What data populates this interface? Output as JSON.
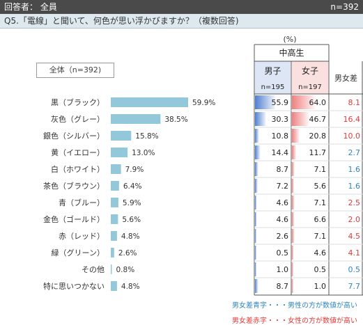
{
  "header": {
    "respondent": "回答者： 全員",
    "n": "n=392"
  },
  "question": "Q5.「電線」と聞いて、何色が思い浮かびますか？（複数回答)",
  "overall_label": "全体（n=392)",
  "table": {
    "unit": "(%)",
    "group": "中高生",
    "male_label": "男子",
    "male_n": "n=195",
    "female_label": "女子",
    "female_n": "n=197",
    "diff_label": "男女差"
  },
  "notes": {
    "blue": "男女差青字・・・男性の方が数値が高い",
    "red": "男女差赤字・・・女性の方が数値が高い"
  },
  "colors": {
    "bar": "#92c8d9",
    "male": "#4f7fd0",
    "female": "#f08080",
    "diff_pos": "#e53935",
    "diff_neg": "#2e86c1"
  },
  "chart_data": {
    "type": "bar",
    "orientation": "horizontal",
    "categories": [
      "黒（ブラック）",
      "灰色（グレー）",
      "銀色（シルバー）",
      "黄（イエロー）",
      "白（ホワイト）",
      "茶色（ブラウン）",
      "青（ブルー）",
      "金色（ゴールド）",
      "赤（レッド）",
      "緑（グリーン）",
      "その他",
      "特に思いつかない"
    ],
    "overall": [
      59.9,
      38.5,
      15.8,
      13.0,
      7.9,
      6.4,
      5.9,
      5.6,
      4.8,
      2.6,
      0.8,
      4.8
    ],
    "overall_labels": [
      "59.9%",
      "38.5%",
      "15.8%",
      "13.0%",
      "7.9%",
      "6.4%",
      "5.9%",
      "5.6%",
      "4.8%",
      "2.6%",
      "0.8%",
      "4.8%"
    ],
    "male": [
      55.9,
      30.3,
      10.8,
      14.4,
      8.7,
      7.2,
      4.6,
      4.6,
      2.6,
      0.5,
      1.0,
      8.7
    ],
    "male_labels": [
      "55.9",
      "30.3",
      "10.8",
      "14.4",
      "8.7",
      "7.2",
      "4.6",
      "4.6",
      "2.6",
      "0.5",
      "1.0",
      "8.7"
    ],
    "female": [
      64.0,
      46.7,
      20.8,
      11.7,
      7.1,
      5.6,
      7.1,
      6.6,
      7.1,
      4.6,
      0.5,
      1.0
    ],
    "female_labels": [
      "64.0",
      "46.7",
      "20.8",
      "11.7",
      "7.1",
      "5.6",
      "7.1",
      "6.6",
      "7.1",
      "4.6",
      "0.5",
      "1.0"
    ],
    "diff": [
      8.1,
      16.4,
      10.0,
      2.7,
      1.6,
      1.6,
      2.5,
      2.0,
      4.5,
      4.1,
      0.5,
      7.7
    ],
    "diff_labels": [
      "8.1",
      "16.4",
      "10.0",
      "2.7",
      "1.6",
      "1.6",
      "2.5",
      "2.0",
      "4.5",
      "4.1",
      "0.5",
      "7.7"
    ],
    "diff_direction": [
      "female",
      "female",
      "female",
      "male",
      "male",
      "male",
      "female",
      "female",
      "female",
      "female",
      "male",
      "male"
    ]
  }
}
